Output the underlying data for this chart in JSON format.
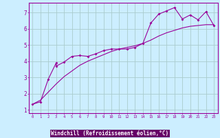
{
  "xlabel": "Windchill (Refroidissement éolien,°C)",
  "bg_color": "#cceeff",
  "line_color": "#990099",
  "grid_color": "#aacccc",
  "xlim": [
    -0.5,
    23.5
  ],
  "ylim": [
    0.8,
    7.6
  ],
  "xticks": [
    0,
    1,
    2,
    3,
    4,
    5,
    6,
    7,
    8,
    9,
    10,
    11,
    12,
    13,
    14,
    15,
    16,
    17,
    18,
    19,
    20,
    21,
    22,
    23
  ],
  "yticks": [
    1,
    2,
    3,
    4,
    5,
    6,
    7
  ],
  "line1_x": [
    0,
    1,
    2,
    3,
    3,
    4,
    5,
    6,
    7,
    8,
    9,
    10,
    11,
    12,
    13,
    14,
    15,
    16,
    17,
    18,
    19,
    20,
    21,
    22,
    23
  ],
  "line1_y": [
    1.35,
    1.5,
    2.9,
    3.9,
    3.7,
    3.95,
    4.3,
    4.35,
    4.3,
    4.45,
    4.65,
    4.75,
    4.75,
    4.75,
    4.85,
    5.1,
    6.35,
    6.9,
    7.1,
    7.3,
    6.6,
    6.85,
    6.55,
    7.05,
    6.2
  ],
  "line2_x": [
    0,
    1,
    2,
    3,
    4,
    5,
    6,
    7,
    8,
    9,
    10,
    11,
    12,
    13,
    14,
    15,
    16,
    17,
    18,
    19,
    20,
    21,
    22,
    23
  ],
  "line2_y": [
    1.35,
    1.6,
    2.1,
    2.6,
    3.05,
    3.4,
    3.75,
    4.0,
    4.2,
    4.4,
    4.6,
    4.75,
    4.85,
    4.95,
    5.1,
    5.3,
    5.55,
    5.75,
    5.9,
    6.05,
    6.15,
    6.2,
    6.25,
    6.25
  ],
  "xlabel_bg": "#660066",
  "xlabel_color": "#ffffff"
}
